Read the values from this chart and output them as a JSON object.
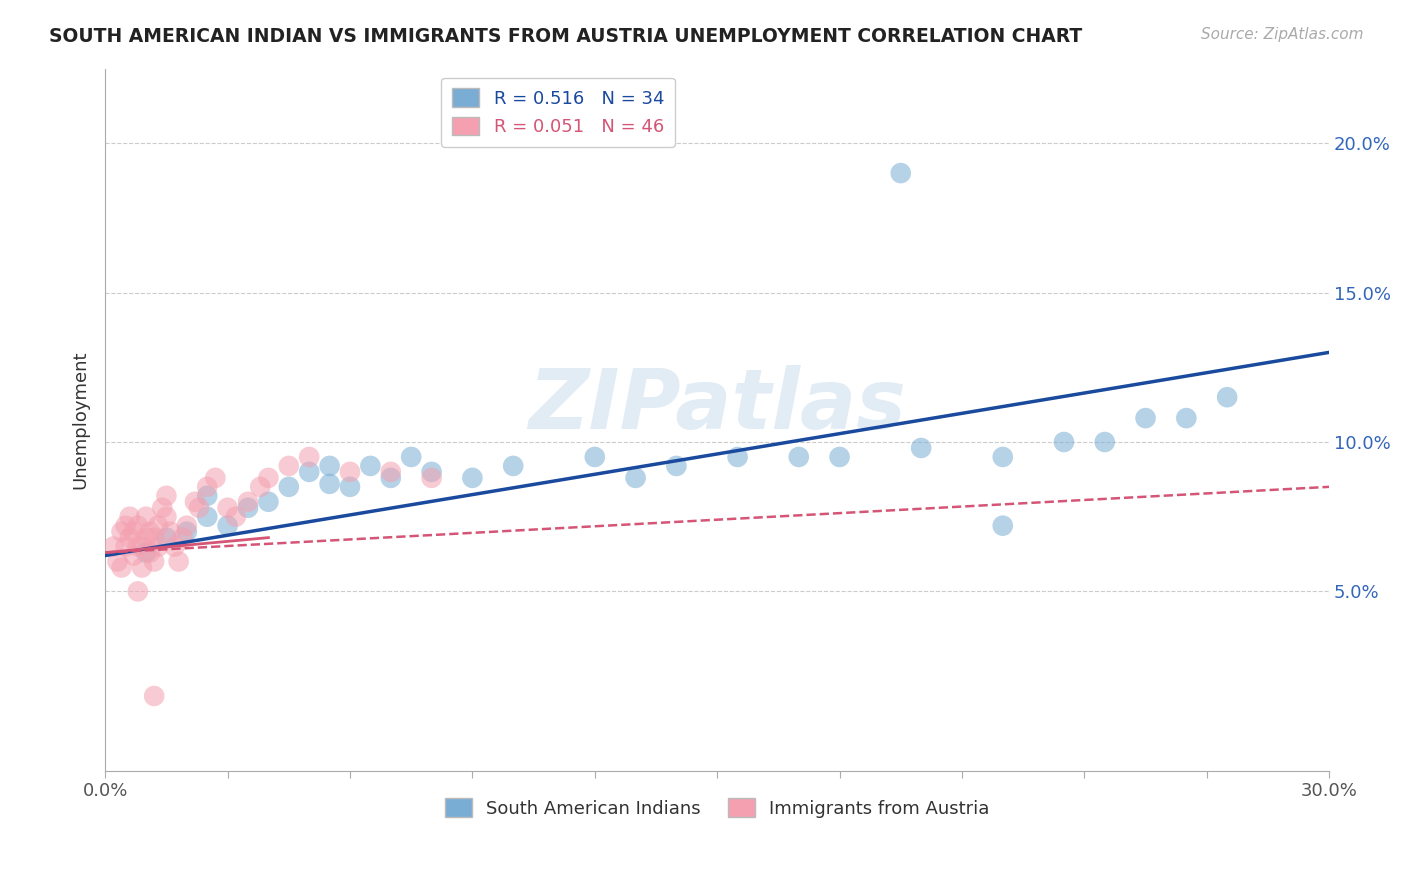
{
  "title": "SOUTH AMERICAN INDIAN VS IMMIGRANTS FROM AUSTRIA UNEMPLOYMENT CORRELATION CHART",
  "source": "Source: ZipAtlas.com",
  "ylabel": "Unemployment",
  "xlim": [
    0.0,
    0.3
  ],
  "ylim": [
    -0.01,
    0.225
  ],
  "xticks": [
    0.0,
    0.03,
    0.06,
    0.09,
    0.12,
    0.15,
    0.18,
    0.21,
    0.24,
    0.27,
    0.3
  ],
  "xtick_labels": [
    "0.0%",
    "",
    "",
    "",
    "",
    "",
    "",
    "",
    "",
    "",
    "30.0%"
  ],
  "yticks": [
    0.05,
    0.1,
    0.15,
    0.2
  ],
  "ytick_labels": [
    "5.0%",
    "10.0%",
    "15.0%",
    "20.0%"
  ],
  "blue_color": "#7aadd4",
  "pink_color": "#f4a0b0",
  "blue_line_color": "#1a4a9e",
  "pink_line_color": "#d45575",
  "watermark_text": "ZIPatlas",
  "legend_r1": "R = 0.516",
  "legend_n1": "N = 34",
  "legend_r2": "R = 0.051",
  "legend_n2": "N = 46",
  "blue_scatter_x": [
    0.01,
    0.015,
    0.02,
    0.025,
    0.025,
    0.03,
    0.035,
    0.04,
    0.045,
    0.05,
    0.055,
    0.055,
    0.06,
    0.065,
    0.07,
    0.075,
    0.08,
    0.09,
    0.1,
    0.12,
    0.13,
    0.14,
    0.155,
    0.17,
    0.18,
    0.2,
    0.22,
    0.235,
    0.245,
    0.255,
    0.265,
    0.275,
    0.195,
    0.22
  ],
  "blue_scatter_y": [
    0.063,
    0.068,
    0.07,
    0.075,
    0.082,
    0.072,
    0.078,
    0.08,
    0.085,
    0.09,
    0.086,
    0.092,
    0.085,
    0.092,
    0.088,
    0.095,
    0.09,
    0.088,
    0.092,
    0.095,
    0.088,
    0.092,
    0.095,
    0.095,
    0.095,
    0.098,
    0.095,
    0.1,
    0.1,
    0.108,
    0.108,
    0.115,
    0.19,
    0.072
  ],
  "pink_scatter_x": [
    0.002,
    0.003,
    0.004,
    0.004,
    0.005,
    0.005,
    0.006,
    0.006,
    0.007,
    0.007,
    0.008,
    0.008,
    0.009,
    0.009,
    0.01,
    0.01,
    0.011,
    0.011,
    0.012,
    0.012,
    0.013,
    0.013,
    0.014,
    0.015,
    0.015,
    0.016,
    0.017,
    0.018,
    0.019,
    0.02,
    0.022,
    0.023,
    0.025,
    0.027,
    0.03,
    0.032,
    0.035,
    0.038,
    0.04,
    0.045,
    0.05,
    0.06,
    0.07,
    0.08,
    0.012,
    0.008
  ],
  "pink_scatter_y": [
    0.065,
    0.06,
    0.058,
    0.07,
    0.065,
    0.072,
    0.068,
    0.075,
    0.062,
    0.07,
    0.065,
    0.072,
    0.058,
    0.065,
    0.068,
    0.075,
    0.063,
    0.07,
    0.06,
    0.068,
    0.065,
    0.072,
    0.078,
    0.082,
    0.075,
    0.07,
    0.065,
    0.06,
    0.068,
    0.072,
    0.08,
    0.078,
    0.085,
    0.088,
    0.078,
    0.075,
    0.08,
    0.085,
    0.088,
    0.092,
    0.095,
    0.09,
    0.09,
    0.088,
    0.015,
    0.05
  ]
}
